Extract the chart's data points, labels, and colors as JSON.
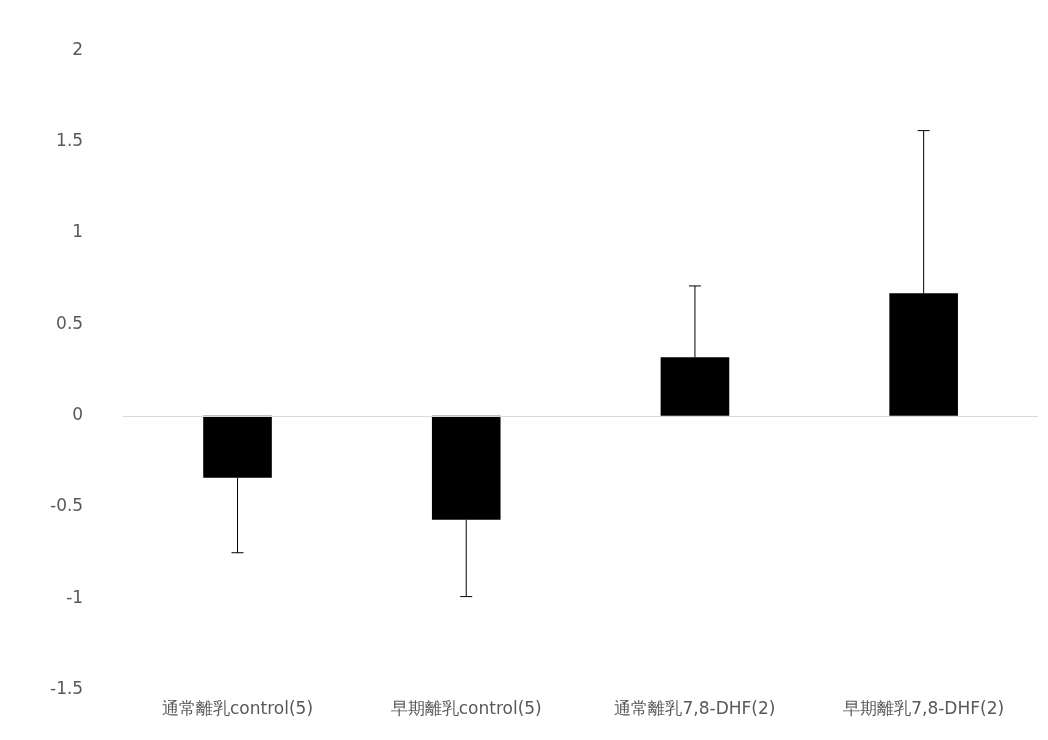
{
  "chart_data": {
    "type": "bar",
    "categories": [
      "通常離乳control(5)",
      "早期離乳control(5)",
      "通常離乳7,8-DHF(2)",
      "早期離乳7,8-DHF(2)"
    ],
    "values": [
      -0.34,
      -0.57,
      0.32,
      0.67
    ],
    "errors": [
      [
        -0.75,
        -0.34
      ],
      [
        -0.99,
        -0.57
      ],
      [
        0.32,
        0.71
      ],
      [
        0.67,
        1.56
      ]
    ],
    "ref_lines": [
      {
        "axis": "y",
        "value": 0,
        "color": "#d9d9d9"
      }
    ],
    "color": "#000000",
    "ylim": [
      -1.5,
      2
    ],
    "yticks": [
      -1.5,
      -1,
      -0.5,
      0,
      0.5,
      1,
      1.5,
      2
    ],
    "grid": false,
    "legend": false
  }
}
